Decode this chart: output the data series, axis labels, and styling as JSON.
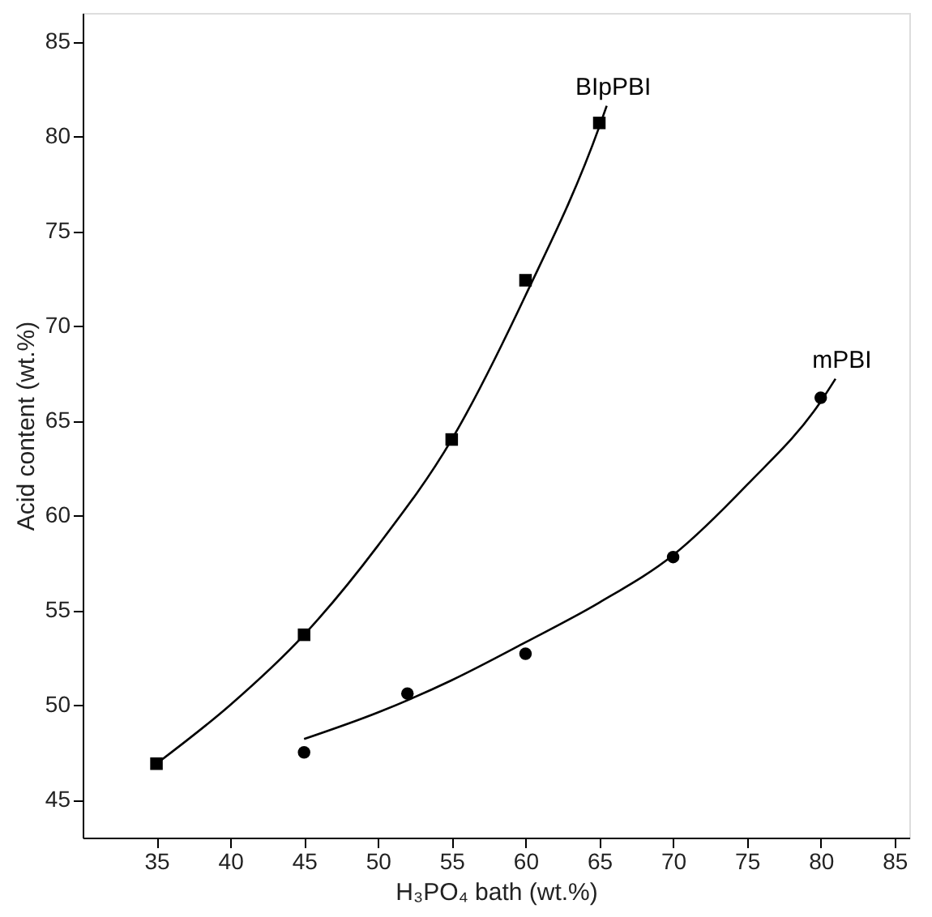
{
  "chart_data": {
    "type": "scatter",
    "xlabel": "H₃PO₄ bath (wt.%)",
    "ylabel": "Acid content (wt.%)",
    "xlim": [
      30,
      86
    ],
    "ylim": [
      43,
      86.5
    ],
    "xticks": [
      35,
      40,
      45,
      50,
      55,
      60,
      65,
      70,
      75,
      80,
      85
    ],
    "yticks": [
      45,
      50,
      55,
      60,
      65,
      70,
      75,
      80,
      85
    ],
    "grid": false,
    "series": [
      {
        "type": "line",
        "name": "BIpPBI",
        "color": "#000000",
        "marker": "none",
        "x": [
          35,
          40,
          45,
          50,
          55,
          60,
          65,
          65.5
        ],
        "values": [
          46.9,
          50.0,
          53.7,
          58.4,
          64.0,
          71.6,
          80.5,
          81.6
        ]
      },
      {
        "type": "line",
        "name": "mPBI",
        "color": "#000000",
        "marker": "none",
        "x": [
          45,
          50,
          55,
          60,
          65,
          70,
          75,
          80,
          81
        ],
        "values": [
          48.2,
          49.6,
          51.3,
          53.3,
          55.4,
          57.9,
          61.6,
          66.0,
          67.2
        ]
      },
      {
        "color": "#000000",
        "marker": "square",
        "x": [
          35,
          45,
          55,
          60,
          65
        ],
        "values": [
          46.9,
          53.7,
          64.0,
          72.4,
          80.7
        ]
      },
      {
        "color": "#000000",
        "marker": "circle",
        "x": [
          45,
          52,
          60,
          70,
          80
        ],
        "values": [
          47.5,
          50.6,
          52.7,
          57.8,
          66.2
        ]
      }
    ]
  }
}
